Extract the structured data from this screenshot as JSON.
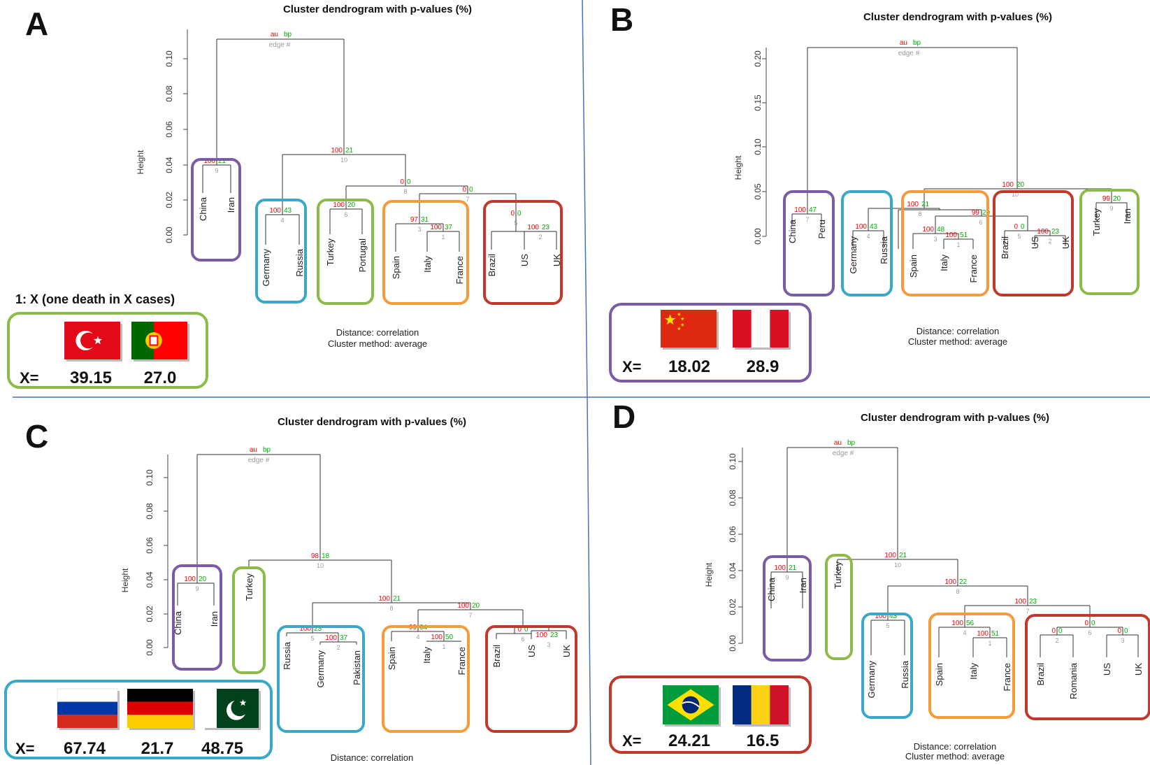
{
  "common": {
    "au": "au",
    "bp": "bp",
    "edge": "edge #",
    "height_label": "Height",
    "distance": "Distance:  correlation",
    "method": "Cluster method: average",
    "x_eq": "X="
  },
  "colors": {
    "au": "#ff0000",
    "bp": "#00b000",
    "edge": "#9a9a9a",
    "purple": "#7b5aa6",
    "blue": "#3aa8c8",
    "green": "#8dbb4a",
    "orange": "#f79a3c",
    "red": "#c0392b",
    "divider": "#4472c4"
  },
  "legend_note": "1: X  (one death in X cases)",
  "panels": [
    {
      "letter": "A",
      "title": "Cluster dendrogram with p-values (%)",
      "ticks": [
        "0.00",
        "0.02",
        "0.04",
        "0.06",
        "0.08",
        "0.10"
      ],
      "leaves": [
        "China",
        "Iran",
        "Germany",
        "Russia",
        "Turkey",
        "Portugal",
        "Spain",
        "Italy",
        "France",
        "Brazil",
        "US",
        "UK"
      ],
      "pvalues": [
        {
          "au": "100",
          "bp": "21",
          "edge": "9"
        },
        {
          "au": "100",
          "bp": "43",
          "edge": "4"
        },
        {
          "au": "100",
          "bp": "20",
          "edge": "6"
        },
        {
          "au": "97",
          "bp": "31",
          "edge": "3"
        },
        {
          "au": "100",
          "bp": "37",
          "edge": "1"
        },
        {
          "au": "0",
          "bp": "0",
          "edge": "5"
        },
        {
          "au": "100",
          "bp": "23",
          "edge": "2"
        },
        {
          "au": "0",
          "bp": "0",
          "edge": "8"
        },
        {
          "au": "0",
          "bp": "0",
          "edge": "7"
        },
        {
          "au": "100",
          "bp": "21",
          "edge": "10"
        }
      ],
      "flags": [
        "Turkey",
        "Portugal"
      ],
      "values": [
        "39.15",
        "27.0"
      ]
    },
    {
      "letter": "B",
      "title": "Cluster dendrogram with p-values (%)",
      "ticks": [
        "0.00",
        "0.05",
        "0.10",
        "0.15",
        "0.20"
      ],
      "leaves": [
        "China",
        "Peru",
        "Germany",
        "Russia",
        "Spain",
        "Italy",
        "France",
        "Brazil",
        "US",
        "UK",
        "Turkey",
        "Iran"
      ],
      "pvalues": [
        {
          "au": "100",
          "bp": "47",
          "edge": "7"
        },
        {
          "au": "100",
          "bp": "43",
          "edge": "4"
        },
        {
          "au": "100",
          "bp": "21",
          "edge": "8"
        },
        {
          "au": "99",
          "bp": "20",
          "edge": "6"
        },
        {
          "au": "100",
          "bp": "48",
          "edge": "3"
        },
        {
          "au": "100",
          "bp": "51",
          "edge": "1"
        },
        {
          "au": "0",
          "bp": "0",
          "edge": "5"
        },
        {
          "au": "100",
          "bp": "23",
          "edge": "2"
        },
        {
          "au": "99",
          "bp": "20",
          "edge": "9"
        },
        {
          "au": "100",
          "bp": "20",
          "edge": "10"
        }
      ],
      "flags": [
        "China",
        "Peru"
      ],
      "values": [
        "18.02",
        "28.9"
      ]
    },
    {
      "letter": "C",
      "title": "Cluster dendrogram with p-values (%)",
      "ticks": [
        "0.00",
        "0.02",
        "0.04",
        "0.06",
        "0.08",
        "0.10"
      ],
      "leaves": [
        "China",
        "Iran",
        "Turkey",
        "Russia",
        "Germany",
        "Pakistan",
        "Spain",
        "Italy",
        "France",
        "Brazil",
        "US",
        "UK"
      ],
      "pvalues": [
        {
          "au": "100",
          "bp": "20",
          "edge": "9"
        },
        {
          "au": "100",
          "bp": "23",
          "edge": "5"
        },
        {
          "au": "100",
          "bp": "37",
          "edge": "2"
        },
        {
          "au": "99",
          "bp": "34",
          "edge": "4"
        },
        {
          "au": "100",
          "bp": "50",
          "edge": "1"
        },
        {
          "au": "0",
          "bp": "0",
          "edge": "6"
        },
        {
          "au": "100",
          "bp": "23",
          "edge": "3"
        },
        {
          "au": "100",
          "bp": "21",
          "edge": "8"
        },
        {
          "au": "100",
          "bp": "20",
          "edge": "7"
        },
        {
          "au": "98",
          "bp": "18",
          "edge": "10"
        }
      ],
      "flags": [
        "Russia",
        "Germany",
        "Pakistan"
      ],
      "values": [
        "67.74",
        "21.7",
        "48.75"
      ]
    },
    {
      "letter": "D",
      "title": "Cluster dendrogram with p-values (%)",
      "ticks": [
        "0.00",
        "0.02",
        "0.04",
        "0.06",
        "0.08",
        "0.10"
      ],
      "leaves": [
        "China",
        "Iran",
        "Turkey",
        "Germany",
        "Russia",
        "Spain",
        "Italy",
        "France",
        "Brazil",
        "Romania",
        "US",
        "UK"
      ],
      "pvalues": [
        {
          "au": "100",
          "bp": "21",
          "edge": "9"
        },
        {
          "au": "100",
          "bp": "43",
          "edge": "5"
        },
        {
          "au": "100",
          "bp": "56",
          "edge": "4"
        },
        {
          "au": "100",
          "bp": "51",
          "edge": "1"
        },
        {
          "au": "0",
          "bp": "0",
          "edge": "2"
        },
        {
          "au": "0",
          "bp": "0",
          "edge": "3"
        },
        {
          "au": "0",
          "bp": "0",
          "edge": "6"
        },
        {
          "au": "100",
          "bp": "23",
          "edge": "7"
        },
        {
          "au": "100",
          "bp": "22",
          "edge": "8"
        },
        {
          "au": "100",
          "bp": "21",
          "edge": "10"
        }
      ],
      "flags": [
        "Brazil",
        "Romania"
      ],
      "values": [
        "24.21",
        "16.5"
      ]
    }
  ]
}
